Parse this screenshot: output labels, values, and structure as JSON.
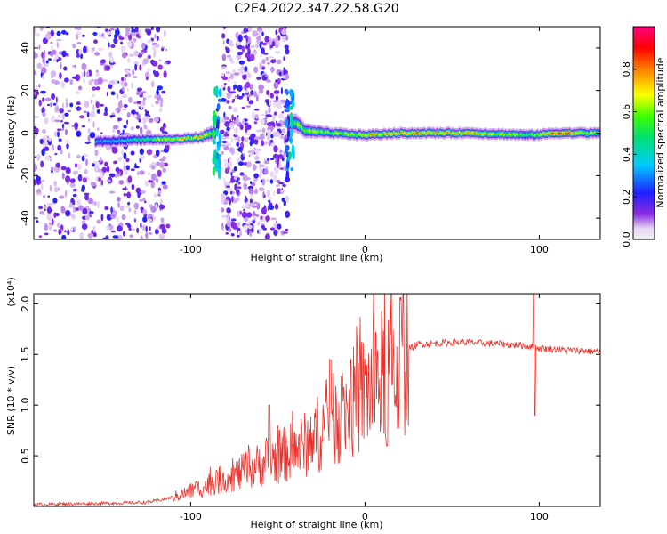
{
  "figure": {
    "title": "C2E4.2022.347.22.58.G20"
  },
  "chart_data": [
    {
      "type": "heatmap",
      "xlabel": "Height of straight line (km)",
      "ylabel": "Frequency (Hz)",
      "xlim": [
        -190,
        135
      ],
      "ylim": [
        -50,
        50
      ],
      "xticks": [
        -100,
        0,
        100
      ],
      "yticks": [
        -40,
        -20,
        0,
        20,
        40
      ],
      "colorbar": {
        "label": "Normalized spectral amplitude",
        "range": [
          0,
          1
        ],
        "ticks": [
          0.0,
          0.2,
          0.4,
          0.6,
          0.8
        ],
        "tick_labels": [
          "0.0",
          "0.2",
          "0.4",
          "0.6",
          "0.8"
        ]
      },
      "noise_regions": [
        {
          "x_range": [
            -190,
            -113
          ],
          "density": 0.55
        },
        {
          "x_range": [
            -82,
            -44
          ],
          "density": 0.85
        }
      ],
      "signal_band": [
        {
          "x": -150,
          "freq": -4,
          "width_hz": 3,
          "amplitude": 0.35
        },
        {
          "x": -130,
          "freq": -3,
          "width_hz": 3,
          "amplitude": 0.45
        },
        {
          "x": -110,
          "freq": -3,
          "width_hz": 3,
          "amplitude": 0.7
        },
        {
          "x": -95,
          "freq": -2,
          "width_hz": 3,
          "amplitude": 0.7
        },
        {
          "x": -88,
          "freq": 0,
          "width_hz": 4,
          "amplitude": 0.55
        },
        {
          "x": -40,
          "freq": 5,
          "width_hz": 5,
          "amplitude": 0.6
        },
        {
          "x": -35,
          "freq": 1,
          "width_hz": 4,
          "amplitude": 0.65
        },
        {
          "x": -20,
          "freq": 0,
          "width_hz": 3,
          "amplitude": 0.6
        },
        {
          "x": 0,
          "freq": -1,
          "width_hz": 3,
          "amplitude": 0.7
        },
        {
          "x": 20,
          "freq": 0,
          "width_hz": 3,
          "amplitude": 0.8
        },
        {
          "x": 60,
          "freq": 0,
          "width_hz": 3,
          "amplitude": 0.7
        },
        {
          "x": 95,
          "freq": -1,
          "width_hz": 3,
          "amplitude": 0.55
        },
        {
          "x": 110,
          "freq": 0,
          "width_hz": 3,
          "amplitude": 0.85
        },
        {
          "x": 135,
          "freq": 0,
          "width_hz": 3,
          "amplitude": 0.55
        }
      ]
    },
    {
      "type": "line",
      "xlabel": "Height of straight line (km)",
      "ylabel": "SNR (10 * v/v)",
      "yscale_label": "(x10⁴)",
      "xlim": [
        -190,
        135
      ],
      "ylim": [
        0,
        21000
      ],
      "xticks": [
        -100,
        0,
        100
      ],
      "yticks": [
        5000,
        10000,
        15000,
        20000
      ],
      "ytick_labels": [
        "0.5",
        "1.0",
        "1.5",
        "2.0"
      ],
      "color": "#e8332c",
      "series": [
        {
          "x": [
            -190,
            -150,
            -125,
            -115,
            -105,
            -95,
            -85,
            -75,
            -65,
            -55,
            -45,
            -35,
            -25,
            -15,
            -5,
            5,
            15,
            20,
            25,
            30,
            40,
            50,
            60,
            70,
            80,
            90,
            95,
            97,
            100,
            110,
            120,
            135
          ],
          "y": [
            200,
            300,
            400,
            700,
            1200,
            1800,
            2500,
            3000,
            3800,
            4500,
            5200,
            6000,
            7500,
            9000,
            10500,
            12000,
            13500,
            14500,
            15500,
            16000,
            16100,
            16200,
            16200,
            16100,
            16000,
            15900,
            15800,
            15700,
            15600,
            15500,
            15400,
            15300
          ]
        }
      ],
      "features": [
        {
          "x": -20,
          "peak": 14500
        },
        {
          "x": -55,
          "peak": 10000
        },
        {
          "x": 12,
          "dip": 6000
        },
        {
          "x": 97,
          "peak": 21000,
          "dip": 9000
        }
      ]
    }
  ]
}
